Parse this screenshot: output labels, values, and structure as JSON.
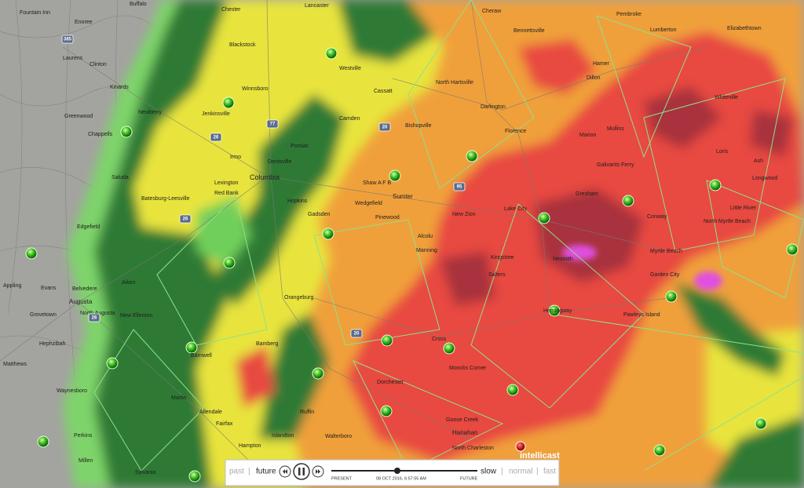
{
  "places": [
    "Fountain Inn",
    "Enoree",
    "Buffalo",
    "Chester",
    "Lancaster",
    "Cheraw",
    "Bennettsville",
    "Pembroke",
    "Lumberton",
    "Elizabethtown",
    "Laurens",
    "Clinton",
    "Kinards",
    "Greenwood",
    "Newberry",
    "Chappells",
    "Blackstock",
    "Winnsboro",
    "Westville",
    "Cassatt",
    "North Hartsville",
    "Hamer",
    "Dillon",
    "Darlington",
    "Camden",
    "Bishopville",
    "Florence",
    "Marion",
    "Mullins",
    "Whiteville",
    "Jenkinsville",
    "Pontiac",
    "Irmo",
    "Dentsville",
    "Columbia",
    "Lexington",
    "Red Bank",
    "Batesburg-Leesville",
    "Shaw A F B",
    "Sumter",
    "Hopkins",
    "Wedgefield",
    "Pinewood",
    "Gadsden",
    "Lake City",
    "Galivants Ferry",
    "Conway",
    "Loris",
    "Ash",
    "Longwood",
    "Little River",
    "North Myrtle Beach",
    "Myrtle Beach",
    "Garden City",
    "Pawleys Island",
    "Hemingway",
    "Gresham",
    "Kingstree",
    "Salters",
    "New Zion",
    "Alcolu",
    "Manning",
    "Nesmith",
    "Orangeburg",
    "Aiken",
    "New Ellenton",
    "Augusta",
    "Evans",
    "Belvedere",
    "North Augusta",
    "Appling",
    "Grovetown",
    "Hephzibah",
    "Matthews",
    "Waynesboro",
    "Perkins",
    "Millen",
    "Sylvania",
    "Edgefield",
    "Saluda",
    "Bamberg",
    "Barnwell",
    "Martin",
    "Allendale",
    "Fairfax",
    "Hampton",
    "Islandton",
    "Ruffin",
    "Walterboro",
    "Dorchester",
    "Moncks Corner",
    "Goose Creek",
    "Hanahan",
    "North Charleston",
    "Cross"
  ],
  "highways": [
    "385",
    "26",
    "77",
    "20",
    "95",
    "26",
    "20",
    "26"
  ],
  "controls": {
    "past": "past",
    "separator": "|",
    "future": "future",
    "slow": "slow",
    "normal": "normal",
    "fast": "fast",
    "present_label": "PRESENT",
    "future_label": "FUTURE",
    "timestamp": "08 OCT 2016, 6:57:55 AM"
  },
  "logo": "intellicast"
}
